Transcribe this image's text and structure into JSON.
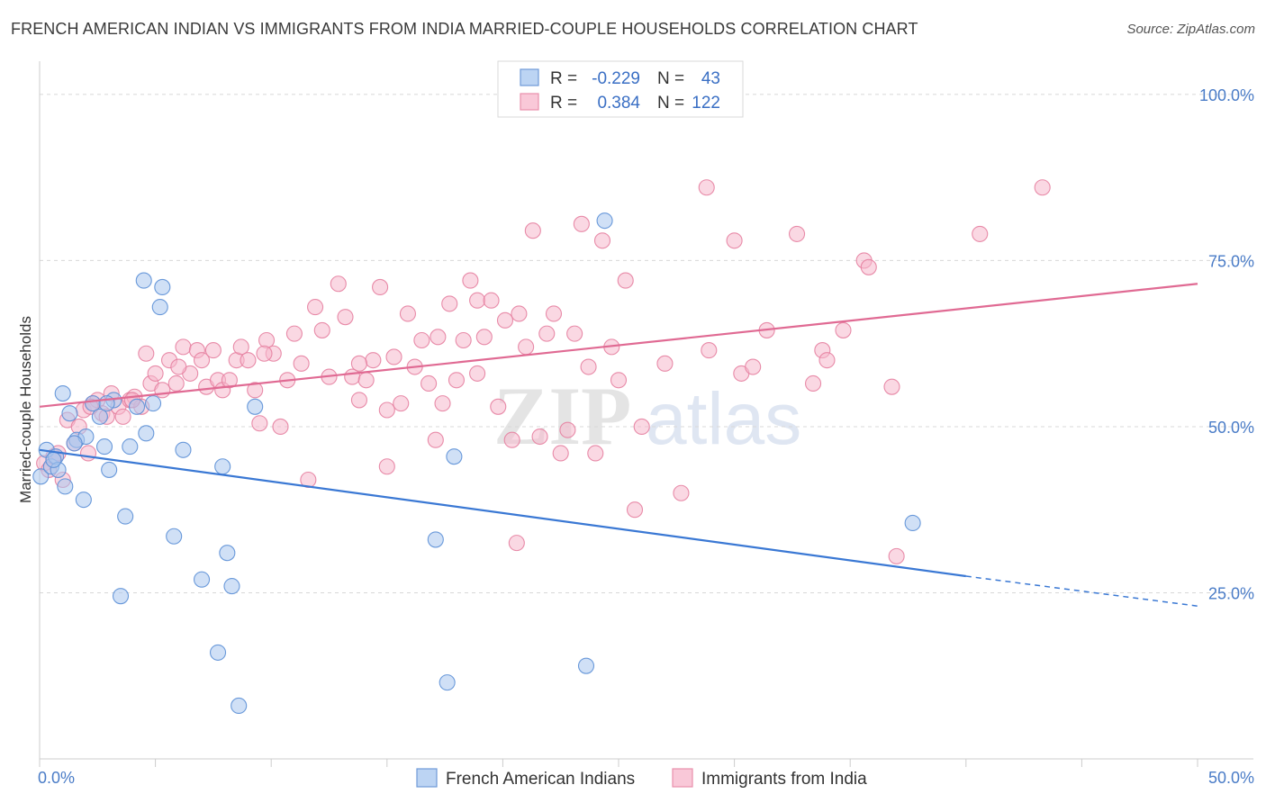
{
  "title": "FRENCH AMERICAN INDIAN VS IMMIGRANTS FROM INDIA MARRIED-COUPLE HOUSEHOLDS CORRELATION CHART",
  "source": "Source: ZipAtlas.com",
  "watermark": {
    "zip": "ZIP",
    "atlas": "atlas"
  },
  "colors": {
    "blue_fill": "#a9c6ef",
    "blue_stroke": "#5b8fd6",
    "blue_line": "#3a78d4",
    "pink_fill": "#f6b8cc",
    "pink_stroke": "#e57fa0",
    "pink_line": "#e06a93",
    "accent_text": "#3a6fc4",
    "grid": "#d8d8d8"
  },
  "legend": {
    "rows": [
      {
        "r_label": "R =",
        "r_value": "-0.229",
        "n_label": "N =",
        "n_value": "43"
      },
      {
        "r_label": "R =",
        "r_value": "0.384",
        "n_label": "N =",
        "n_value": "122"
      }
    ]
  },
  "chart_data": {
    "type": "scatter",
    "title": "FRENCH AMERICAN INDIAN VS IMMIGRANTS FROM INDIA MARRIED-COUPLE HOUSEHOLDS CORRELATION CHART",
    "xlabel": "",
    "ylabel": "Married-couple Households",
    "xlim": [
      0,
      50
    ],
    "ylim": [
      0,
      105
    ],
    "x_tick_labels": [
      "0.0%",
      "50.0%"
    ],
    "y_ticks": [
      25,
      50,
      75,
      100
    ],
    "y_tick_labels": [
      "25.0%",
      "50.0%",
      "75.0%",
      "100.0%"
    ],
    "series": [
      {
        "name": "French American Indians",
        "R": -0.229,
        "N": 43,
        "trend": {
          "x0": 0,
          "y0": 46.5,
          "x1": 40,
          "y1": 27.5,
          "dash_to_x": 50,
          "dash_to_y": 23
        },
        "points": [
          [
            0.05,
            42.5
          ],
          [
            0.3,
            46.5
          ],
          [
            0.5,
            44
          ],
          [
            0.7,
            45.5
          ],
          [
            0.8,
            43.5
          ],
          [
            1.0,
            55
          ],
          [
            1.1,
            41
          ],
          [
            1.3,
            52
          ],
          [
            1.6,
            48
          ],
          [
            1.9,
            39
          ],
          [
            2.0,
            48.5
          ],
          [
            2.3,
            53.5
          ],
          [
            2.6,
            51.5
          ],
          [
            2.8,
            47
          ],
          [
            3.0,
            43.5
          ],
          [
            3.2,
            54
          ],
          [
            3.5,
            24.5
          ],
          [
            3.7,
            36.5
          ],
          [
            3.9,
            47
          ],
          [
            4.2,
            53
          ],
          [
            4.5,
            72
          ],
          [
            4.6,
            49
          ],
          [
            4.9,
            53.5
          ],
          [
            5.2,
            68
          ],
          [
            5.3,
            71
          ],
          [
            5.8,
            33.5
          ],
          [
            6.2,
            46.5
          ],
          [
            7.0,
            27
          ],
          [
            7.7,
            16
          ],
          [
            7.9,
            44
          ],
          [
            8.1,
            31
          ],
          [
            8.3,
            26
          ],
          [
            8.6,
            8
          ],
          [
            9.3,
            53
          ],
          [
            17.1,
            33
          ],
          [
            17.6,
            11.5
          ],
          [
            17.9,
            45.5
          ],
          [
            23.6,
            14
          ],
          [
            24.4,
            81
          ],
          [
            37.7,
            35.5
          ],
          [
            0.6,
            45
          ],
          [
            1.5,
            47.5
          ],
          [
            2.9,
            53.5
          ]
        ]
      },
      {
        "name": "Immigrants from India",
        "R": 0.384,
        "N": 122,
        "trend": {
          "x0": 0,
          "y0": 53,
          "x1": 50,
          "y1": 71.5
        },
        "points": [
          [
            0.2,
            44.5
          ],
          [
            0.4,
            43.5
          ],
          [
            0.6,
            45.5
          ],
          [
            0.8,
            46
          ],
          [
            1.0,
            42
          ],
          [
            1.2,
            51
          ],
          [
            1.5,
            47.5
          ],
          [
            1.7,
            50
          ],
          [
            1.9,
            52.5
          ],
          [
            2.1,
            46
          ],
          [
            2.3,
            53.5
          ],
          [
            2.5,
            54
          ],
          [
            2.7,
            52
          ],
          [
            2.9,
            51.5
          ],
          [
            3.1,
            55
          ],
          [
            3.4,
            53
          ],
          [
            3.6,
            51.5
          ],
          [
            3.9,
            54
          ],
          [
            4.1,
            54.5
          ],
          [
            4.4,
            53
          ],
          [
            4.6,
            61
          ],
          [
            4.8,
            56.5
          ],
          [
            5.0,
            58
          ],
          [
            5.3,
            55.5
          ],
          [
            5.6,
            60
          ],
          [
            5.9,
            56.5
          ],
          [
            6.2,
            62
          ],
          [
            6.5,
            58
          ],
          [
            6.8,
            61.5
          ],
          [
            7.0,
            60
          ],
          [
            7.2,
            56
          ],
          [
            7.5,
            61.5
          ],
          [
            7.7,
            57
          ],
          [
            7.9,
            55.5
          ],
          [
            8.2,
            57
          ],
          [
            8.5,
            60
          ],
          [
            8.7,
            62
          ],
          [
            9.0,
            60
          ],
          [
            9.3,
            55.5
          ],
          [
            9.5,
            50.5
          ],
          [
            9.8,
            63
          ],
          [
            10.1,
            61
          ],
          [
            10.4,
            50
          ],
          [
            10.7,
            57
          ],
          [
            11.0,
            64
          ],
          [
            11.3,
            59.5
          ],
          [
            11.6,
            42
          ],
          [
            11.9,
            68
          ],
          [
            12.2,
            64.5
          ],
          [
            12.5,
            57.5
          ],
          [
            12.9,
            71.5
          ],
          [
            13.2,
            66.5
          ],
          [
            13.5,
            57.5
          ],
          [
            13.8,
            54
          ],
          [
            14.1,
            57
          ],
          [
            14.4,
            60
          ],
          [
            14.7,
            71
          ],
          [
            15.0,
            52.5
          ],
          [
            15.3,
            60.5
          ],
          [
            15.6,
            53.5
          ],
          [
            15.9,
            67
          ],
          [
            16.2,
            59
          ],
          [
            16.5,
            63
          ],
          [
            16.8,
            56.5
          ],
          [
            17.1,
            48
          ],
          [
            17.4,
            53.5
          ],
          [
            17.7,
            68.5
          ],
          [
            18.0,
            57
          ],
          [
            18.3,
            63
          ],
          [
            18.6,
            72
          ],
          [
            18.9,
            69
          ],
          [
            19.2,
            63.5
          ],
          [
            19.5,
            69
          ],
          [
            19.8,
            53
          ],
          [
            20.1,
            66
          ],
          [
            20.4,
            48
          ],
          [
            20.7,
            67
          ],
          [
            21.0,
            62
          ],
          [
            21.3,
            79.5
          ],
          [
            21.6,
            48.5
          ],
          [
            21.9,
            64
          ],
          [
            22.2,
            67
          ],
          [
            22.5,
            46
          ],
          [
            22.8,
            49.5
          ],
          [
            23.1,
            64
          ],
          [
            23.4,
            80.5
          ],
          [
            23.7,
            59
          ],
          [
            24.0,
            46
          ],
          [
            24.3,
            78
          ],
          [
            24.7,
            62
          ],
          [
            25.0,
            57
          ],
          [
            25.3,
            72
          ],
          [
            25.7,
            37.5
          ],
          [
            26.0,
            50
          ],
          [
            27.0,
            59.5
          ],
          [
            27.7,
            40
          ],
          [
            28.8,
            86
          ],
          [
            28.9,
            61.5
          ],
          [
            30.0,
            78
          ],
          [
            30.3,
            58
          ],
          [
            30.8,
            59
          ],
          [
            31.4,
            64.5
          ],
          [
            32.7,
            79
          ],
          [
            33.4,
            56.5
          ],
          [
            33.8,
            61.5
          ],
          [
            34.0,
            60
          ],
          [
            34.7,
            64.5
          ],
          [
            35.6,
            75
          ],
          [
            35.8,
            74
          ],
          [
            36.8,
            56
          ],
          [
            37.0,
            30.5
          ],
          [
            40.6,
            79
          ],
          [
            43.3,
            86
          ],
          [
            13.8,
            59.5
          ],
          [
            20.6,
            32.5
          ],
          [
            2.2,
            53
          ],
          [
            4.0,
            54
          ],
          [
            6.0,
            59
          ],
          [
            9.7,
            61
          ],
          [
            17.2,
            63.5
          ],
          [
            18.9,
            58
          ],
          [
            15.0,
            44
          ]
        ]
      }
    ],
    "legend_position": "top-center",
    "grid": true
  },
  "bottom_legend": [
    {
      "label": "French American Indians"
    },
    {
      "label": "Immigrants from India"
    }
  ]
}
